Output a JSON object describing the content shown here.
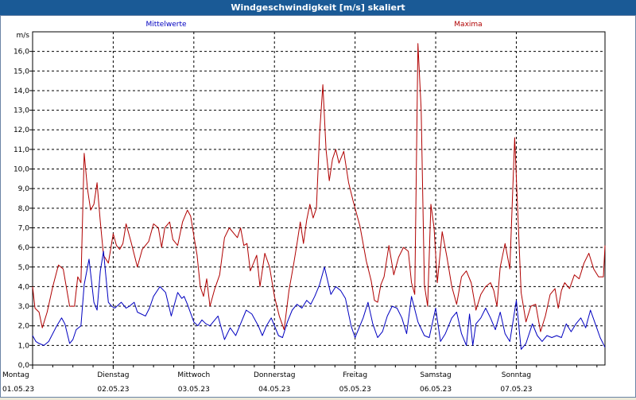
{
  "window": {
    "title": "Windgeschwindigkeit [m/s] skaliert"
  },
  "chart_data": {
    "type": "line",
    "title": "Windgeschwindigkeit [m/s] skaliert",
    "ylabel": "m/s",
    "ylim": [
      0,
      17
    ],
    "yticks": [
      "0,0",
      "1,0",
      "2,0",
      "3,0",
      "4,0",
      "5,0",
      "6,0",
      "7,0",
      "8,0",
      "9,0",
      "10,0",
      "11,0",
      "12,0",
      "13,0",
      "14,0",
      "15,0",
      "16,0"
    ],
    "xlim": [
      0,
      7.1
    ],
    "grid": true,
    "days": [
      {
        "name": "Montag",
        "date": "01.05.23"
      },
      {
        "name": "Dienstag",
        "date": "02.05.23"
      },
      {
        "name": "Mittwoch",
        "date": "03.05.23"
      },
      {
        "name": "Donnerstag",
        "date": "04.05.23"
      },
      {
        "name": "Freitag",
        "date": "05.05.23"
      },
      {
        "name": "Samstag",
        "date": "06.05.23"
      },
      {
        "name": "Sonntag",
        "date": "07.05.23"
      }
    ],
    "series": [
      {
        "name": "Mittelwerte",
        "color": "#0000c0",
        "x": [
          0,
          0.04,
          0.08,
          0.14,
          0.2,
          0.3,
          0.36,
          0.4,
          0.46,
          0.5,
          0.54,
          0.6,
          0.64,
          0.7,
          0.76,
          0.8,
          0.84,
          0.88,
          0.94,
          0.98,
          1.02,
          1.1,
          1.16,
          1.2,
          1.26,
          1.3,
          1.4,
          1.45,
          1.5,
          1.58,
          1.65,
          1.72,
          1.8,
          1.85,
          1.88,
          1.92,
          2.0,
          2.05,
          2.1,
          2.15,
          2.2,
          2.3,
          2.38,
          2.45,
          2.52,
          2.58,
          2.65,
          2.72,
          2.8,
          2.85,
          2.9,
          2.96,
          3.05,
          3.1,
          3.16,
          3.22,
          3.28,
          3.34,
          3.4,
          3.45,
          3.5,
          3.56,
          3.62,
          3.7,
          3.76,
          3.82,
          3.88,
          3.95,
          4.0,
          4.05,
          4.1,
          4.16,
          4.22,
          4.28,
          4.34,
          4.4,
          4.46,
          4.52,
          4.58,
          4.64,
          4.7,
          4.78,
          4.86,
          4.92,
          5.0,
          5.06,
          5.12,
          5.2,
          5.26,
          5.32,
          5.38,
          5.42,
          5.46,
          5.5,
          5.56,
          5.62,
          5.68,
          5.74,
          5.8,
          5.86,
          5.92,
          6.0,
          6.06,
          6.12,
          6.2,
          6.26,
          6.32,
          6.38,
          6.44,
          6.5,
          6.56,
          6.62,
          6.68,
          6.74,
          6.8,
          6.86,
          6.92,
          6.98,
          7.04,
          7.1
        ],
        "values": [
          1.5,
          1.2,
          1.1,
          1.0,
          1.2,
          2.0,
          2.4,
          2.1,
          1.1,
          1.3,
          1.8,
          2.0,
          4.1,
          5.4,
          3.2,
          2.8,
          4.8,
          5.8,
          3.2,
          3.0,
          2.9,
          3.2,
          2.9,
          3.0,
          3.2,
          2.7,
          2.5,
          2.9,
          3.5,
          4.0,
          3.7,
          2.5,
          3.7,
          3.4,
          3.5,
          3.1,
          2.2,
          2.0,
          2.3,
          2.1,
          2.0,
          2.5,
          1.3,
          1.9,
          1.5,
          2.1,
          2.8,
          2.6,
          2.0,
          1.5,
          2.0,
          2.4,
          1.5,
          1.4,
          2.2,
          2.8,
          3.1,
          2.9,
          3.3,
          3.1,
          3.5,
          4.1,
          5.0,
          3.6,
          4.0,
          3.8,
          3.4,
          2.0,
          1.4,
          1.9,
          2.4,
          3.2,
          2.1,
          1.4,
          1.7,
          2.5,
          3.0,
          2.9,
          2.4,
          1.6,
          3.5,
          2.2,
          1.5,
          1.4,
          2.9,
          1.2,
          1.6,
          2.4,
          2.7,
          1.6,
          1.0,
          2.6,
          1.0,
          2.1,
          2.4,
          2.9,
          2.4,
          1.8,
          2.7,
          1.6,
          1.2,
          3.3,
          0.8,
          1.1,
          2.1,
          1.5,
          1.2,
          1.5,
          1.4,
          1.5,
          1.4,
          2.1,
          1.7,
          2.1,
          2.4,
          1.9,
          2.8,
          2.1,
          1.4,
          0.9
        ]
      },
      {
        "name": "Maxima",
        "color": "#b00000",
        "x": [
          0,
          0.03,
          0.08,
          0.12,
          0.18,
          0.25,
          0.32,
          0.38,
          0.46,
          0.52,
          0.56,
          0.6,
          0.64,
          0.68,
          0.72,
          0.76,
          0.8,
          0.84,
          0.88,
          0.94,
          1.0,
          1.04,
          1.08,
          1.12,
          1.16,
          1.22,
          1.3,
          1.36,
          1.44,
          1.5,
          1.56,
          1.6,
          1.64,
          1.7,
          1.74,
          1.8,
          1.86,
          1.92,
          1.96,
          2.0,
          2.04,
          2.08,
          2.12,
          2.16,
          2.2,
          2.26,
          2.32,
          2.38,
          2.44,
          2.5,
          2.54,
          2.58,
          2.62,
          2.66,
          2.7,
          2.74,
          2.78,
          2.82,
          2.88,
          2.94,
          3.0,
          3.06,
          3.12,
          3.18,
          3.24,
          3.28,
          3.32,
          3.36,
          3.4,
          3.44,
          3.48,
          3.52,
          3.56,
          3.6,
          3.64,
          3.68,
          3.72,
          3.76,
          3.8,
          3.86,
          3.92,
          3.98,
          4.06,
          4.14,
          4.2,
          4.24,
          4.28,
          4.32,
          4.36,
          4.42,
          4.48,
          4.54,
          4.6,
          4.66,
          4.7,
          4.74,
          4.78,
          4.82,
          4.86,
          4.9,
          4.94,
          4.98,
          5.02,
          5.08,
          5.14,
          5.2,
          5.26,
          5.32,
          5.38,
          5.44,
          5.5,
          5.56,
          5.62,
          5.68,
          5.72,
          5.76,
          5.8,
          5.86,
          5.92,
          5.98,
          6.06,
          6.12,
          6.18,
          6.24,
          6.3,
          6.36,
          6.42,
          6.48,
          6.52,
          6.56,
          6.6,
          6.66,
          6.72,
          6.78,
          6.84,
          6.9,
          6.96,
          7.02,
          7.08,
          7.1
        ],
        "values": [
          4.0,
          2.9,
          2.7,
          1.9,
          2.7,
          4.0,
          5.1,
          4.9,
          3.0,
          3.0,
          4.5,
          4.2,
          10.8,
          9.0,
          7.9,
          8.2,
          9.3,
          7.3,
          5.6,
          5.2,
          6.7,
          6.1,
          5.9,
          6.2,
          7.2,
          6.3,
          5.0,
          5.9,
          6.3,
          7.2,
          7.0,
          6.0,
          7.0,
          7.3,
          6.4,
          6.1,
          7.3,
          7.9,
          7.6,
          6.6,
          5.6,
          4.0,
          3.5,
          4.4,
          3.0,
          3.9,
          4.6,
          6.5,
          7.0,
          6.7,
          6.5,
          7.0,
          6.1,
          6.2,
          4.8,
          5.2,
          5.6,
          4.0,
          5.7,
          5.0,
          3.5,
          2.5,
          1.8,
          3.8,
          5.2,
          6.2,
          7.3,
          6.2,
          7.4,
          8.2,
          7.5,
          8.0,
          11.8,
          14.3,
          11.0,
          9.4,
          10.5,
          11.0,
          10.3,
          10.9,
          9.3,
          8.3,
          7.1,
          5.3,
          4.3,
          3.3,
          3.2,
          4.1,
          4.5,
          6.1,
          4.6,
          5.5,
          6.0,
          5.8,
          4.2,
          3.6,
          16.4,
          13.0,
          4.1,
          3.0,
          8.2,
          7.0,
          4.2,
          6.8,
          5.5,
          4.0,
          3.1,
          4.5,
          4.8,
          4.2,
          2.8,
          3.6,
          4.0,
          4.2,
          3.8,
          3.0,
          5.0,
          6.2,
          4.9,
          11.6,
          3.7,
          2.2,
          3.0,
          3.1,
          1.7,
          2.5,
          3.6,
          3.9,
          2.9,
          3.8,
          4.2,
          3.9,
          4.6,
          4.4,
          5.2,
          5.7,
          4.9,
          4.5,
          4.5,
          6.1
        ]
      }
    ]
  }
}
